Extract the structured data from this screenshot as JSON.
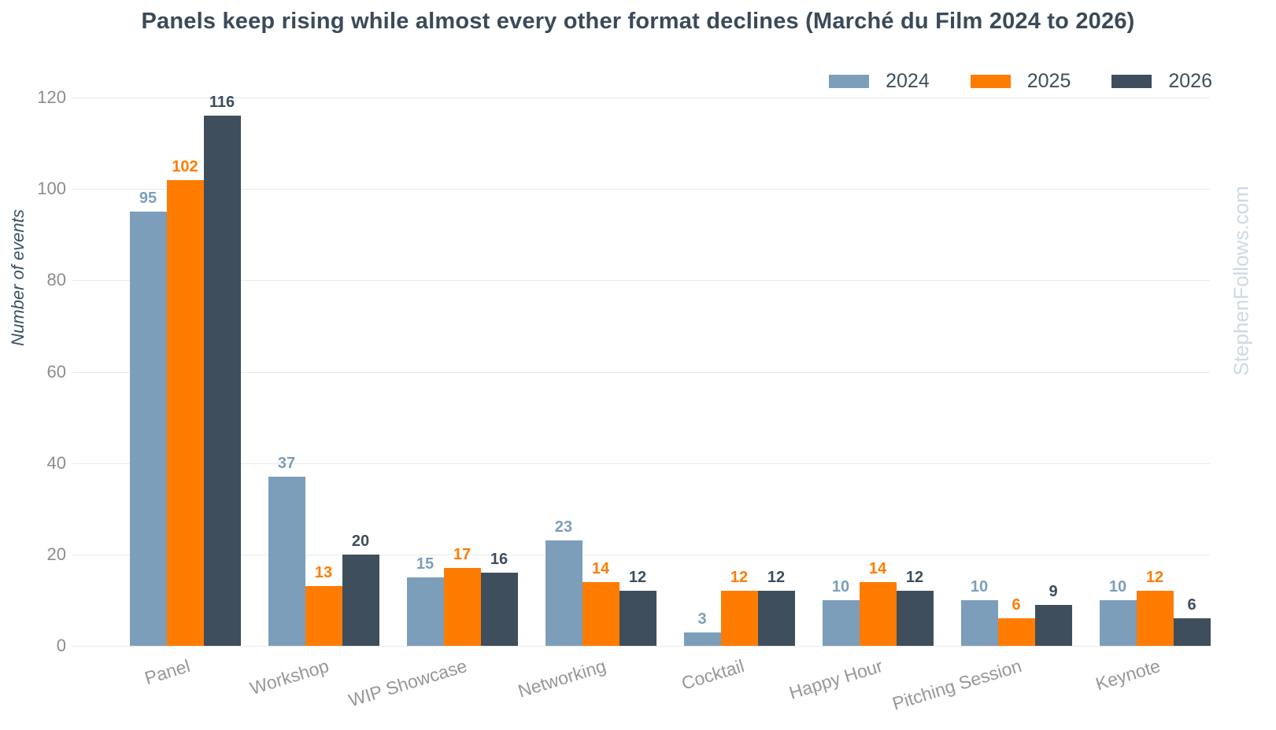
{
  "page": {
    "watermark": "StephenFollows.com"
  },
  "chart_data": {
    "type": "bar",
    "title": "Panels keep rising while almost every other format declines (Marché du Film 2024 to 2026)",
    "xlabel": "",
    "ylabel": "Number of events",
    "categories": [
      "Panel",
      "Workshop",
      "WIP Showcase",
      "Networking",
      "Cocktail",
      "Happy Hour",
      "Pitching Session",
      "Keynote"
    ],
    "series": [
      {
        "name": "2024",
        "color": "#7c9eba",
        "values": [
          95,
          37,
          15,
          23,
          3,
          10,
          10,
          10
        ]
      },
      {
        "name": "2025",
        "color": "#ff7c00",
        "values": [
          102,
          13,
          17,
          14,
          12,
          14,
          6,
          12
        ]
      },
      {
        "name": "2026",
        "color": "#3e4e5c",
        "values": [
          116,
          20,
          16,
          12,
          12,
          12,
          9,
          6
        ]
      }
    ],
    "ylim": [
      0,
      120
    ],
    "yticks": [
      0,
      20,
      40,
      60,
      80,
      100,
      120
    ],
    "grid": true,
    "legend_position": "top-right",
    "value_labels": true,
    "colors": {
      "title_text": "#3b4a59",
      "axis_tick_text": "#8c8c8c",
      "category_text": "#979797",
      "gridline": "#e9e9e9",
      "watermark_text": "#cdd9e4",
      "background": "#ffffff"
    }
  }
}
